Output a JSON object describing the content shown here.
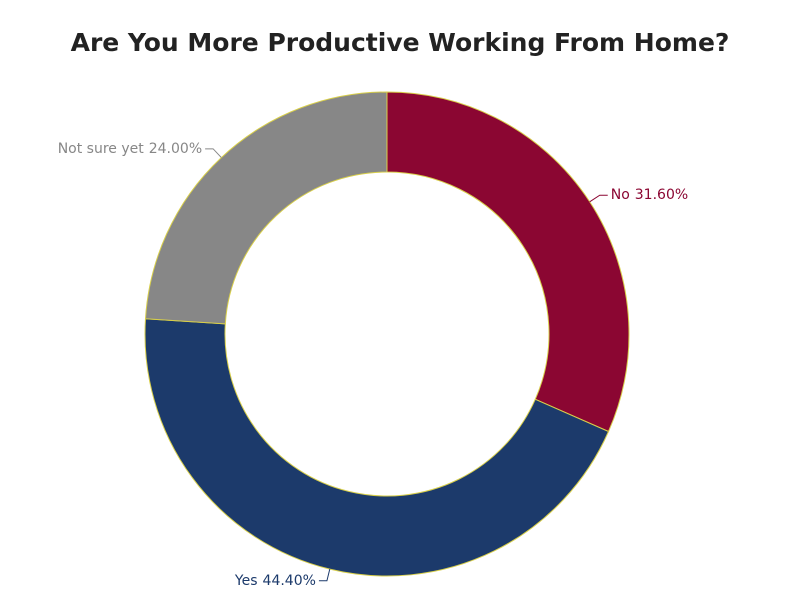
{
  "chart_data": {
    "type": "donut",
    "title": "Are You More Productive Working From Home?",
    "categories": [
      "No",
      "Yes",
      "Not sure yet"
    ],
    "values": [
      31.6,
      44.4,
      24.0
    ],
    "value_labels": [
      "31.60%",
      "44.40%",
      "24.00%"
    ],
    "colors": [
      "#8b0632",
      "#1c3a6b",
      "#878787"
    ]
  }
}
